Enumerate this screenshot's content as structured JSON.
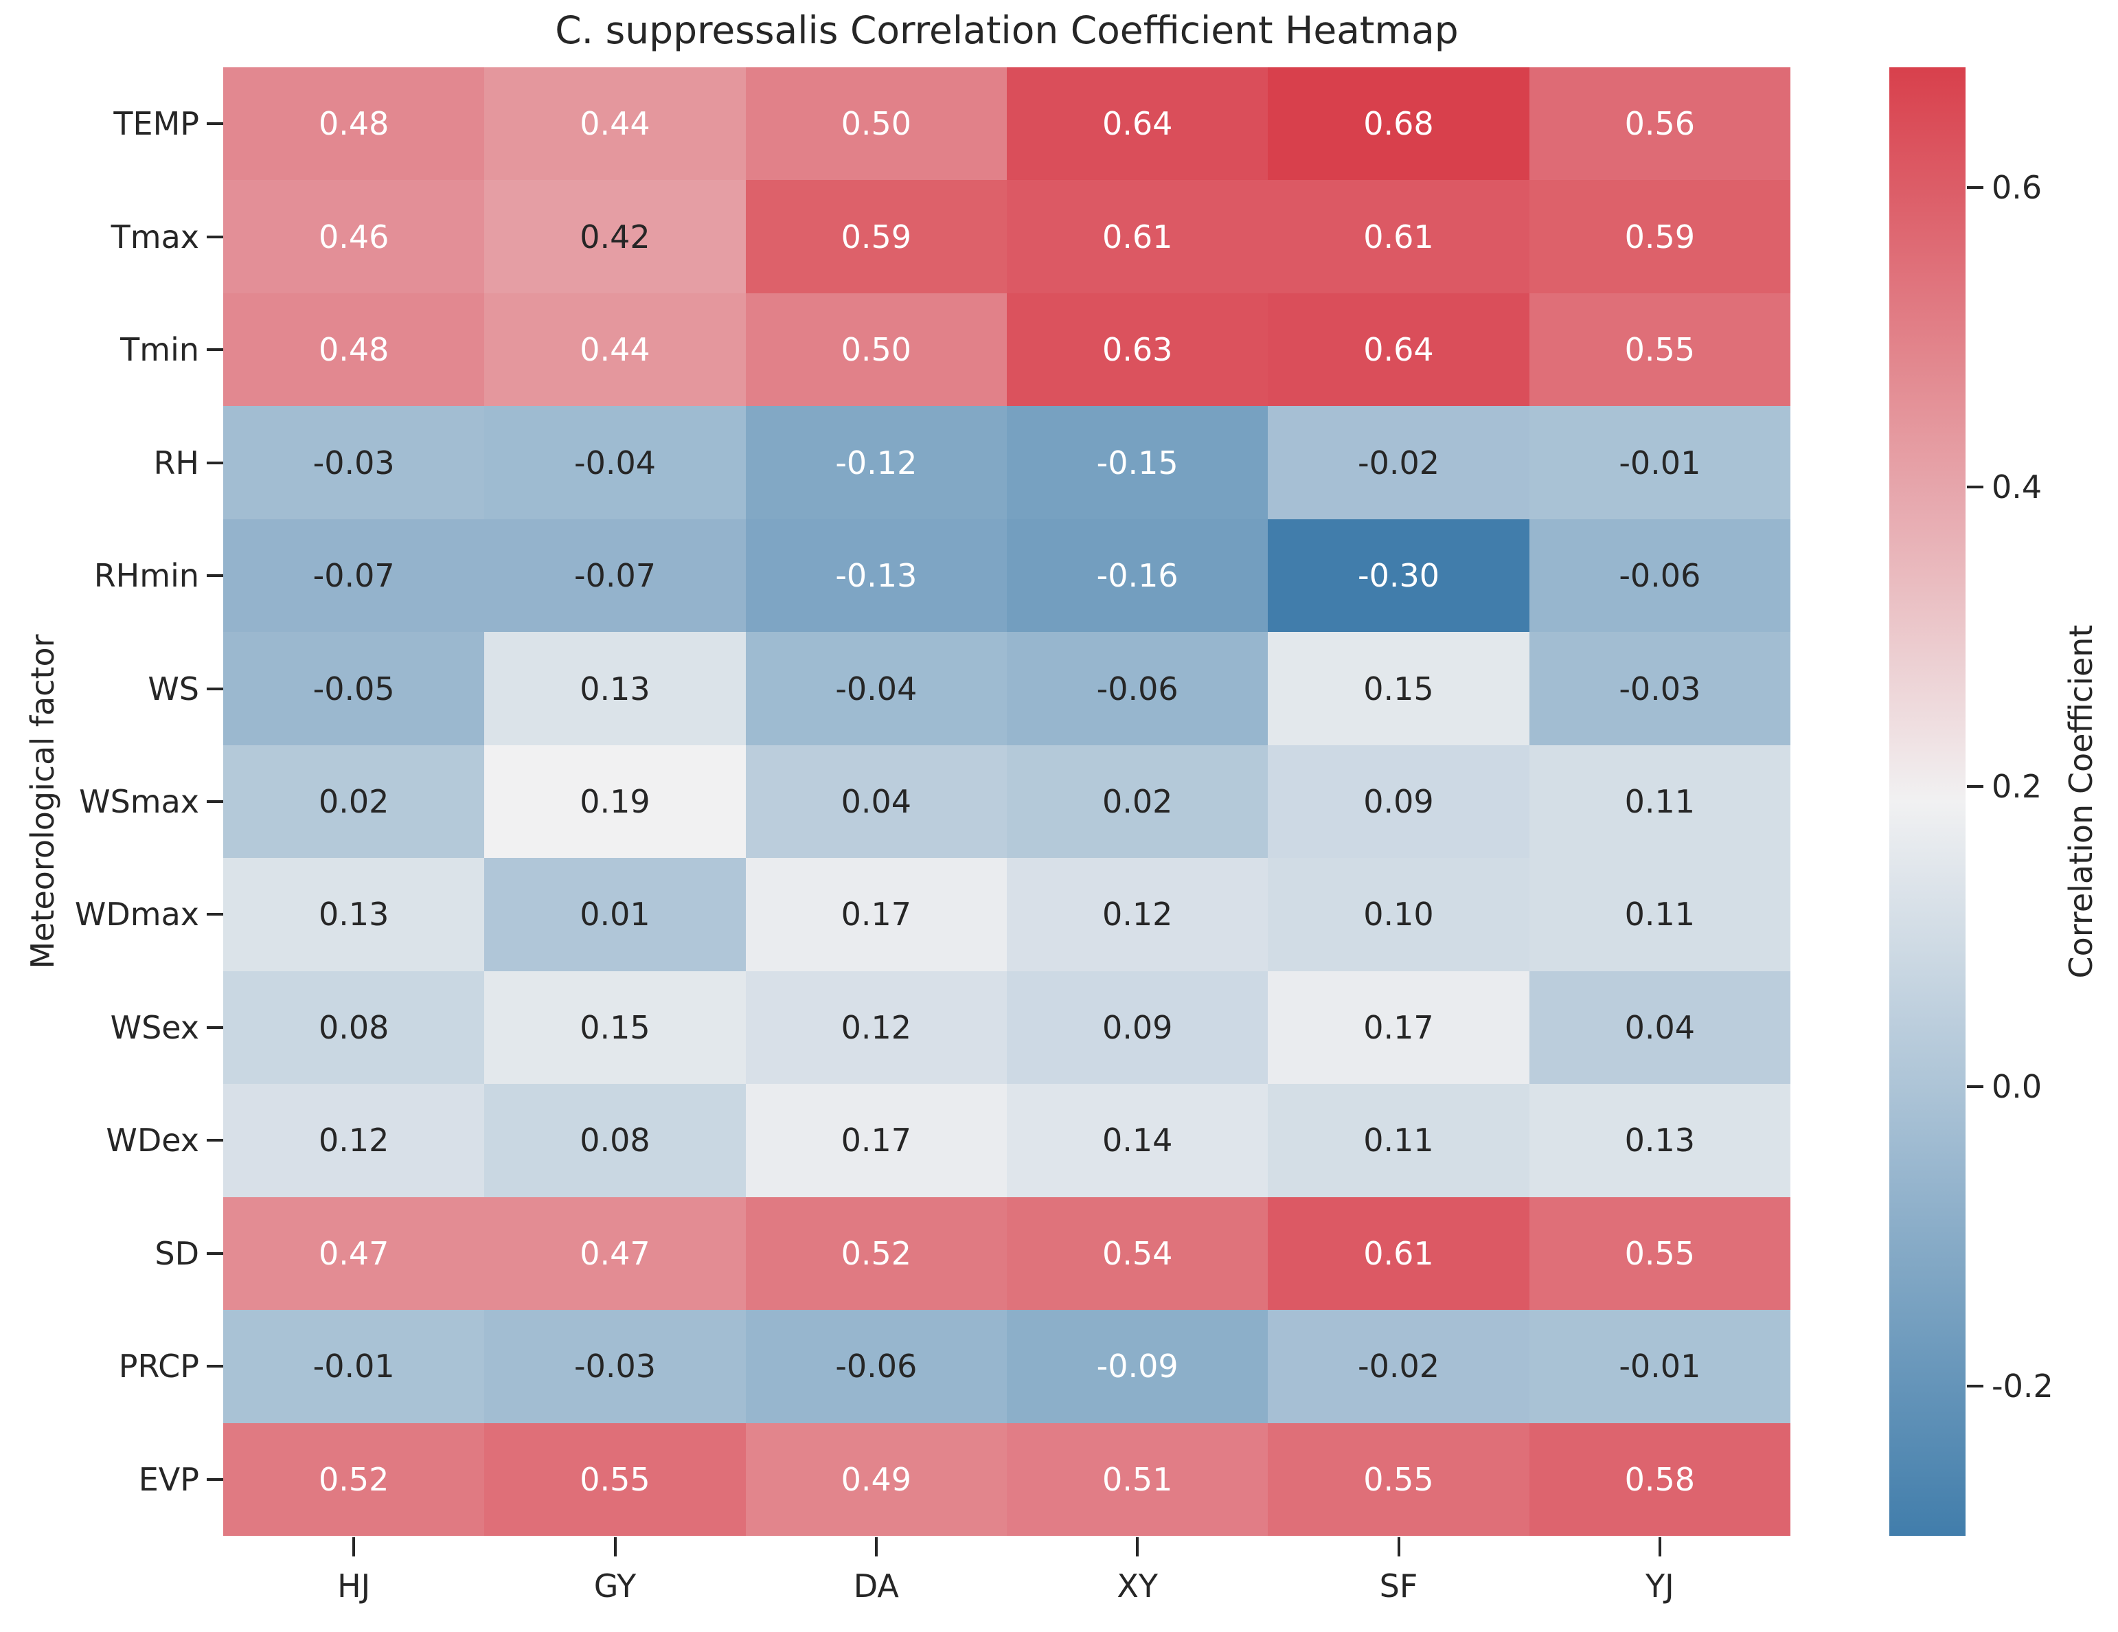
{
  "title": "C. suppressalis Correlation Coefficient Heatmap",
  "chart_data": {
    "type": "heatmap",
    "title": "C. suppressalis Correlation Coefficient Heatmap",
    "x_categories": [
      "HJ",
      "GY",
      "DA",
      "XY",
      "SF",
      "YJ"
    ],
    "y_categories": [
      "TEMP",
      "Tmax",
      "Tmin",
      "RH",
      "RHmin",
      "WS",
      "WSmax",
      "WDmax",
      "WSex",
      "WDex",
      "SD",
      "PRCP",
      "EVP"
    ],
    "values": [
      [
        0.48,
        0.44,
        0.5,
        0.64,
        0.68,
        0.56
      ],
      [
        0.46,
        0.42,
        0.59,
        0.61,
        0.61,
        0.59
      ],
      [
        0.48,
        0.44,
        0.5,
        0.63,
        0.64,
        0.55
      ],
      [
        -0.03,
        -0.04,
        -0.12,
        -0.15,
        -0.02,
        -0.01
      ],
      [
        -0.07,
        -0.07,
        -0.13,
        -0.16,
        -0.3,
        -0.06
      ],
      [
        -0.05,
        0.13,
        -0.04,
        -0.06,
        0.15,
        -0.03
      ],
      [
        0.02,
        0.19,
        0.04,
        0.02,
        0.09,
        0.11
      ],
      [
        0.13,
        0.01,
        0.17,
        0.12,
        0.1,
        0.11
      ],
      [
        0.08,
        0.15,
        0.12,
        0.09,
        0.17,
        0.04
      ],
      [
        0.12,
        0.08,
        0.17,
        0.14,
        0.11,
        0.13
      ],
      [
        0.47,
        0.47,
        0.52,
        0.54,
        0.61,
        0.55
      ],
      [
        -0.01,
        -0.03,
        -0.06,
        -0.09,
        -0.02,
        -0.01
      ],
      [
        0.52,
        0.55,
        0.49,
        0.51,
        0.55,
        0.58
      ]
    ],
    "xlabel": "",
    "ylabel": "Meteorological factor",
    "grid": false,
    "colorbar": {
      "label": "Correlation Coefficient",
      "ticks": [
        0.6,
        0.4,
        0.2,
        0.0,
        -0.2
      ],
      "vmin": -0.3,
      "vmax": 0.68
    },
    "colors": {
      "max_red": "#d8404c",
      "mid_white": "#f1f1f2",
      "min_blue": "#417dab",
      "dark_text": "#262626",
      "light_text": "#ffffff"
    }
  }
}
